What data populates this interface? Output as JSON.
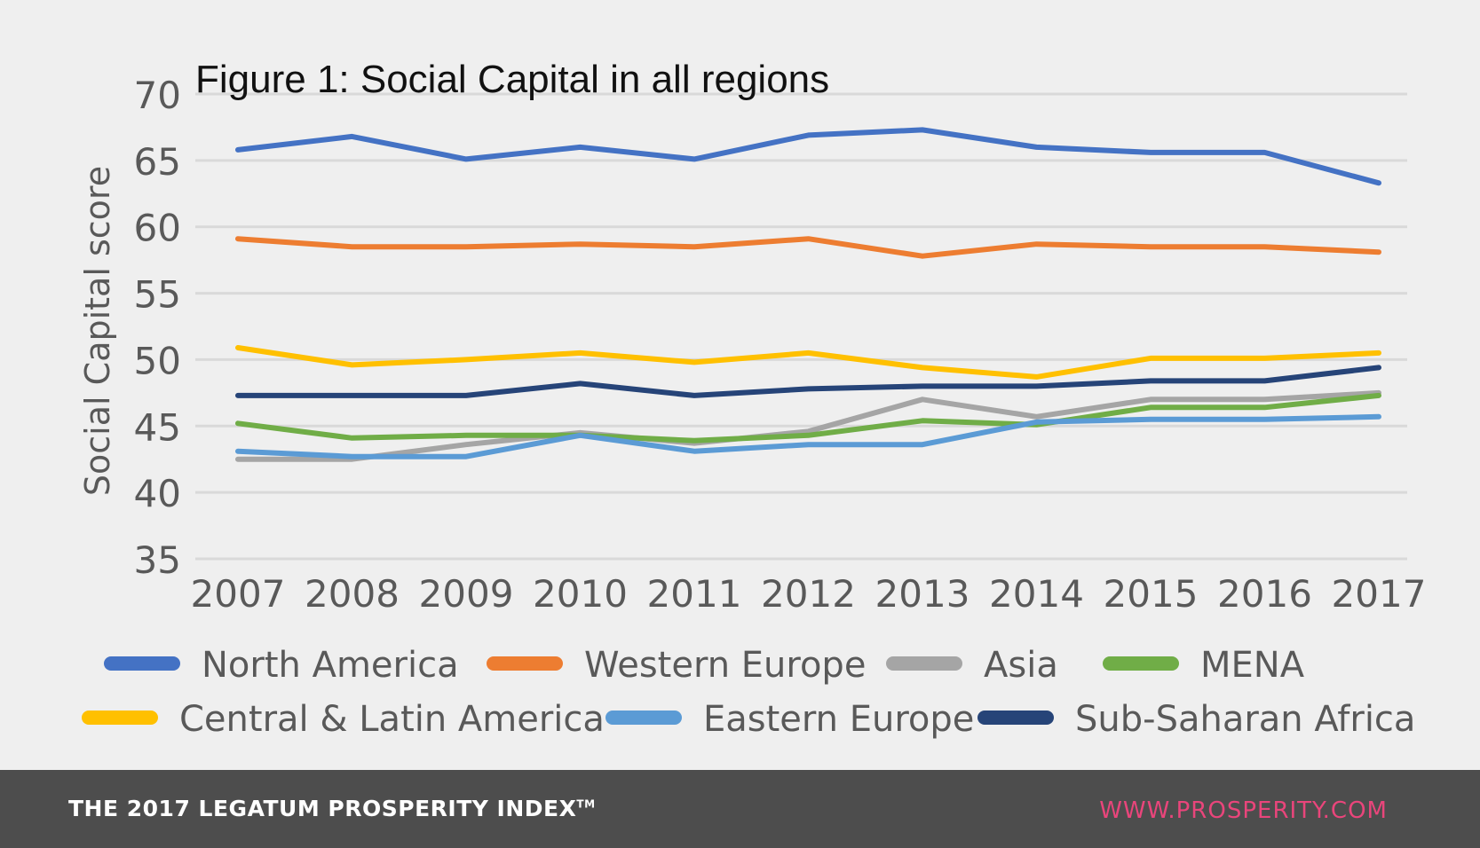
{
  "chart_data": {
    "type": "line",
    "title": "Figure 1: Social Capital in all regions",
    "ylabel": "Social Capital score",
    "xlabel": "",
    "categories": [
      "2007",
      "2008",
      "2009",
      "2010",
      "2011",
      "2012",
      "2013",
      "2014",
      "2015",
      "2016",
      "2017"
    ],
    "ylim": [
      35,
      70
    ],
    "yticks": [
      "35",
      "40",
      "45",
      "50",
      "55",
      "60",
      "65",
      "70"
    ],
    "grid": true,
    "legend_position": "bottom",
    "series": [
      {
        "name": "North America",
        "color": "#4472c4",
        "values": [
          65.8,
          66.8,
          65.1,
          66.0,
          65.1,
          66.9,
          67.3,
          66.0,
          65.6,
          65.6,
          63.3
        ]
      },
      {
        "name": "Western Europe",
        "color": "#ed7d31",
        "values": [
          59.1,
          58.5,
          58.5,
          58.7,
          58.5,
          59.1,
          57.8,
          58.7,
          58.5,
          58.5,
          58.1
        ]
      },
      {
        "name": "Asia",
        "color": "#a5a5a5",
        "values": [
          42.5,
          42.5,
          43.6,
          44.5,
          43.7,
          44.6,
          47.0,
          45.7,
          47.0,
          47.0,
          47.5
        ]
      },
      {
        "name": "MENA",
        "color": "#70ad47",
        "values": [
          45.2,
          44.1,
          44.3,
          44.3,
          43.9,
          44.3,
          45.4,
          45.1,
          46.4,
          46.4,
          47.3
        ]
      },
      {
        "name": "Central & Latin America",
        "color": "#ffc000",
        "values": [
          50.9,
          49.6,
          50.0,
          50.5,
          49.8,
          50.5,
          49.4,
          48.7,
          50.1,
          50.1,
          50.5
        ]
      },
      {
        "name": "Eastern Europe",
        "color": "#5b9bd5",
        "values": [
          43.1,
          42.7,
          42.7,
          44.3,
          43.1,
          43.6,
          43.6,
          45.3,
          45.5,
          45.5,
          45.7
        ]
      },
      {
        "name": "Sub-Saharan Africa",
        "color": "#264478",
        "values": [
          47.3,
          47.3,
          47.3,
          48.2,
          47.3,
          47.8,
          48.0,
          48.0,
          48.4,
          48.4,
          49.4
        ]
      }
    ]
  },
  "footer": {
    "left_text": "THE 2017 LEGATUM PROSPERITY INDEX",
    "left_mark": "TM",
    "right_text": "WWW.PROSPERITY.COM"
  }
}
